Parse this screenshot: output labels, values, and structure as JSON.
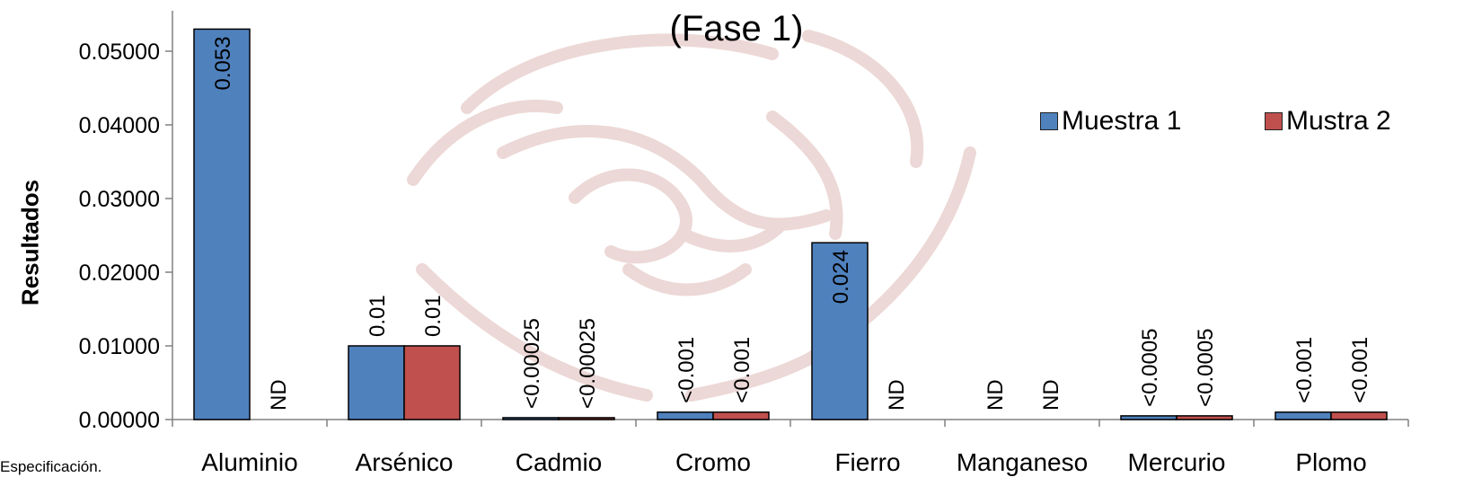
{
  "chart_data": {
    "type": "bar",
    "title": "(Fase 1)",
    "xlabel": "",
    "ylabel": "Resultados",
    "ylim": [
      0,
      0.053
    ],
    "yticks": [
      "0.00000",
      "0.01000",
      "0.02000",
      "0.03000",
      "0.04000",
      "0.05000"
    ],
    "ytick_values": [
      0,
      0.01,
      0.02,
      0.03,
      0.04,
      0.05
    ],
    "categories": [
      "Aluminio",
      "Arsénico",
      "Cadmio",
      "Cromo",
      "Fierro",
      "Manganeso",
      "Mercurio",
      "Plomo"
    ],
    "series": [
      {
        "name": "Muestra 1",
        "color": "#4f81bd",
        "values": [
          0.053,
          0.01,
          0.00025,
          0.001,
          0.024,
          0,
          0.0005,
          0.001
        ],
        "labels": [
          "0.053",
          "0.01",
          "<0.00025",
          "<0.001",
          "0.024",
          "ND",
          "<0.0005",
          "<0.001"
        ]
      },
      {
        "name": "Mustra 2",
        "color": "#c0504d",
        "values": [
          0,
          0.01,
          0.00025,
          0.001,
          0,
          0,
          0.0005,
          0.001
        ],
        "labels": [
          "ND",
          "0.01",
          "<0.00025",
          "<0.001",
          "ND",
          "ND",
          "<0.0005",
          "<0.001"
        ]
      }
    ],
    "legend_position": "top-right",
    "grid": false
  },
  "footnote": "Especificación."
}
